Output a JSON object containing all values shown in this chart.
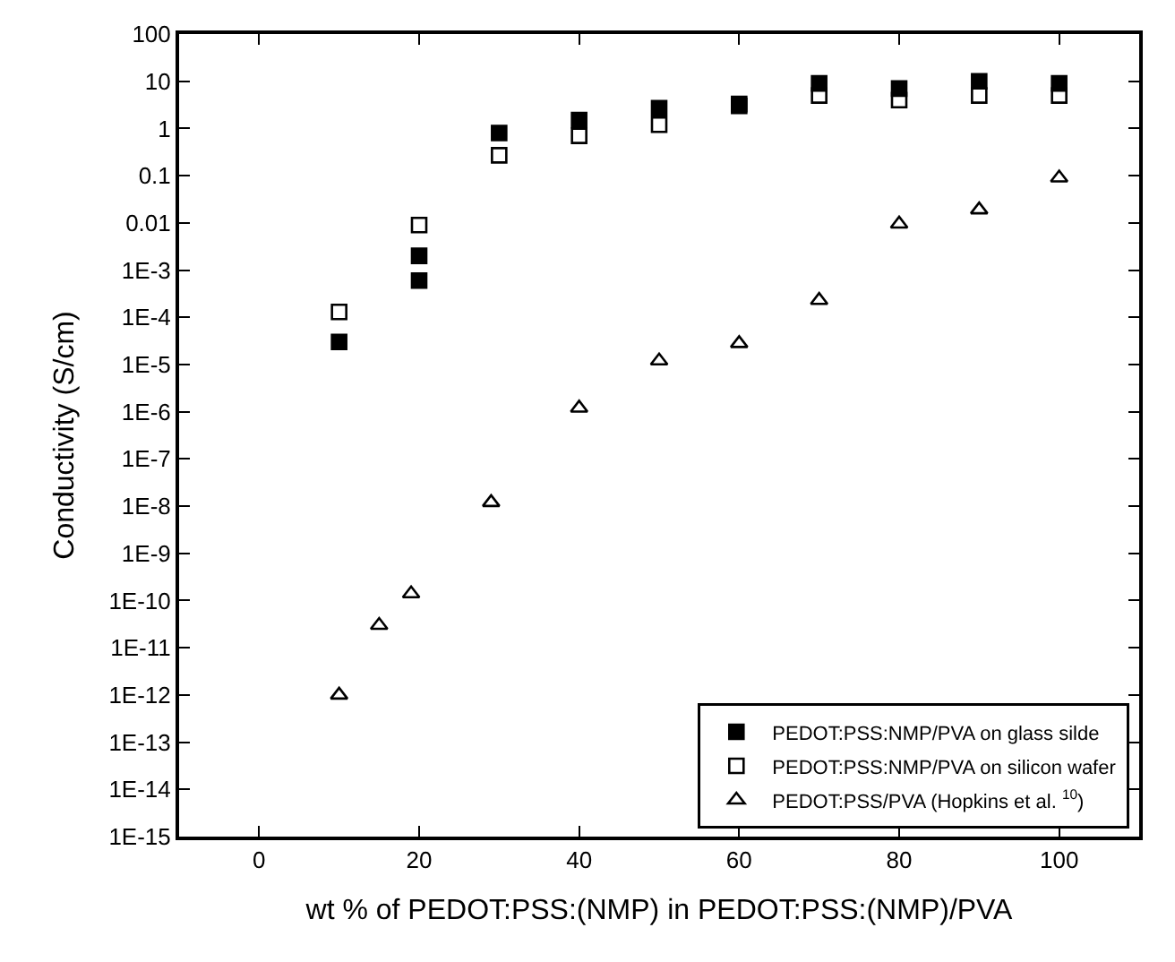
{
  "chart_data": {
    "type": "scatter",
    "xlabel": "wt % of PEDOT:PSS:(NMP) in PEDOT:PSS:(NMP)/PVA",
    "ylabel": "Conductivity (S/cm)",
    "log": "y",
    "xlim": [
      -10,
      110
    ],
    "xticks": [
      0,
      20,
      40,
      60,
      80,
      100
    ],
    "ylim": [
      1e-15,
      100
    ],
    "yticks": [
      {
        "value": 100,
        "label": "100"
      },
      {
        "value": 10,
        "label": "10"
      },
      {
        "value": 1,
        "label": "1"
      },
      {
        "value": 0.1,
        "label": "0.1"
      },
      {
        "value": 0.01,
        "label": "0.01"
      },
      {
        "value": 0.001,
        "label": "1E-3"
      },
      {
        "value": 0.0001,
        "label": "1E-4"
      },
      {
        "value": 1e-05,
        "label": "1E-5"
      },
      {
        "value": 1e-06,
        "label": "1E-6"
      },
      {
        "value": 1e-07,
        "label": "1E-7"
      },
      {
        "value": 1e-08,
        "label": "1E-8"
      },
      {
        "value": 1e-09,
        "label": "1E-9"
      },
      {
        "value": 1e-10,
        "label": "1E-10"
      },
      {
        "value": 1e-11,
        "label": "1E-11"
      },
      {
        "value": 1e-12,
        "label": "1E-12"
      },
      {
        "value": 1e-13,
        "label": "1E-13"
      },
      {
        "value": 1e-14,
        "label": "1E-14"
      },
      {
        "value": 1e-15,
        "label": "1E-15"
      }
    ],
    "legend": "bottom right",
    "series": [
      {
        "name": "PEDOT:PSS:NMP/PVA on glass silde",
        "color": "#000000",
        "marker": "square",
        "x": [
          10,
          20,
          20,
          30,
          40,
          50,
          60,
          70,
          80,
          90,
          100
        ],
        "values": [
          3e-05,
          0.002,
          0.0006,
          0.8,
          1.5,
          2.7,
          3.3,
          9,
          7,
          10,
          9
        ]
      },
      {
        "name": "PEDOT:PSS:NMP/PVA on silicon wafer",
        "color": "#000000",
        "marker": "square",
        "x": [
          10,
          20,
          30,
          40,
          50,
          60,
          70,
          80,
          90,
          100
        ],
        "values": [
          0.00013,
          0.009,
          0.27,
          0.7,
          1.2,
          3,
          5,
          4,
          5,
          5
        ]
      },
      {
        "name": "PEDOT:PSS/PVA (Hopkins et al. $^{10}$)",
        "color": "#000000",
        "marker": "triangle",
        "x": [
          10,
          15,
          19,
          29,
          40,
          50,
          60,
          70,
          80,
          90,
          100
        ],
        "values": [
          1e-12,
          3e-11,
          1.4e-10,
          1.2e-08,
          1.2e-06,
          1.2e-05,
          2.8e-05,
          0.00023,
          0.0095,
          0.019,
          0.09
        ]
      }
    ]
  }
}
